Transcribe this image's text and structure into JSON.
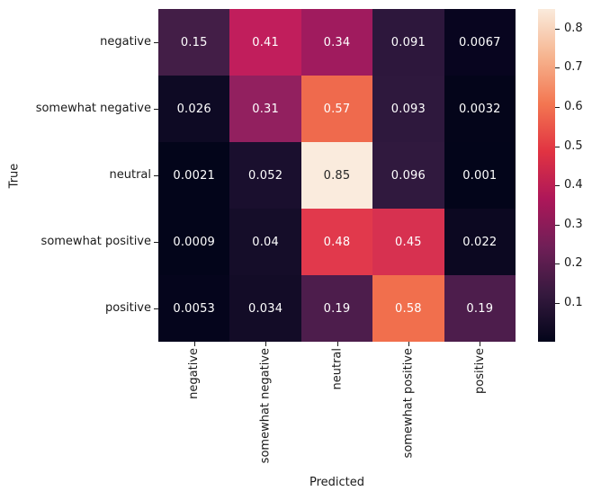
{
  "chart_data": {
    "type": "heatmap",
    "title": "",
    "xlabel": "Predicted",
    "ylabel": "True",
    "x_categories": [
      "negative",
      "somewhat negative",
      "neutral",
      "somewhat positive",
      "positive"
    ],
    "y_categories": [
      "negative",
      "somewhat negative",
      "neutral",
      "somewhat positive",
      "positive"
    ],
    "values": [
      [
        0.15,
        0.41,
        0.34,
        0.091,
        0.0067
      ],
      [
        0.026,
        0.31,
        0.57,
        0.093,
        0.0032
      ],
      [
        0.0021,
        0.052,
        0.85,
        0.096,
        0.001
      ],
      [
        0.0009,
        0.04,
        0.48,
        0.45,
        0.022
      ],
      [
        0.0053,
        0.034,
        0.19,
        0.58,
        0.19
      ]
    ],
    "annotations": [
      [
        "0.15",
        "0.41",
        "0.34",
        "0.091",
        "0.0067"
      ],
      [
        "0.026",
        "0.31",
        "0.57",
        "0.093",
        "0.0032"
      ],
      [
        "0.0021",
        "0.052",
        "0.85",
        "0.096",
        "0.001"
      ],
      [
        "0.0009",
        "0.04",
        "0.48",
        "0.45",
        "0.022"
      ],
      [
        "0.0053",
        "0.034",
        "0.19",
        "0.58",
        "0.19"
      ]
    ],
    "cell_colors": [
      [
        "#431e47",
        "#c11e5c",
        "#a01b5e",
        "#2d173c",
        "#08051f"
      ],
      [
        "#0e0a24",
        "#92205f",
        "#ef6a4d",
        "#2e183d",
        "#04051a"
      ],
      [
        "#03051a",
        "#1a0f2e",
        "#faebdd",
        "#30193e",
        "#03051a"
      ],
      [
        "#03051a",
        "#150d29",
        "#e1394c",
        "#d73150",
        "#0c0821"
      ],
      [
        "#05051c",
        "#130c27",
        "#4d1d4c",
        "#f16f4d",
        "#4d1d4c"
      ]
    ],
    "vmin": 0.0009,
    "vmax": 0.85,
    "grid": false,
    "legend_position": "right-colorbar",
    "colorbar": {
      "tick_labels": [
        "0.8",
        "0.7",
        "0.6",
        "0.5",
        "0.4",
        "0.3",
        "0.2",
        "0.1"
      ],
      "tick_values": [
        0.8,
        0.7,
        0.6,
        0.5,
        0.4,
        0.3,
        0.2,
        0.1
      ],
      "gradient_stops": [
        "#03051a",
        "#35193e",
        "#701f57",
        "#ad1759",
        "#e13342",
        "#f37651",
        "#f6b48f",
        "#faebdc"
      ],
      "colormap_name": "rocket"
    },
    "annotation_text_light_bg": "#262626",
    "annotation_text_dark_bg": "#ffffff",
    "axis_color": "#1a1a1a",
    "background": "#ffffff"
  }
}
